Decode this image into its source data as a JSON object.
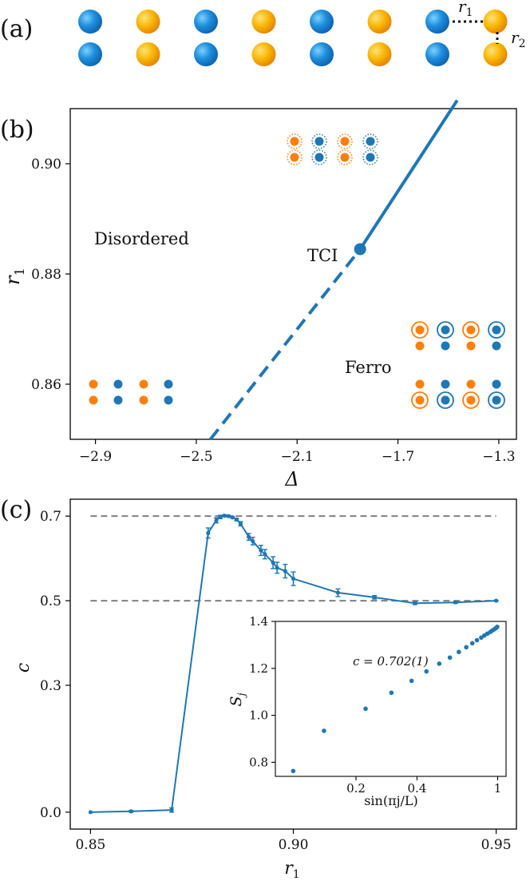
{
  "panel_labels": {
    "a": "(a)",
    "b": "(b)",
    "c": "(c)"
  },
  "colors": {
    "blue": "#1f77b4",
    "orange": "#ff7f0e",
    "gold": "#f5a800",
    "sphere_blue": "#1e90dd",
    "grid_dash": "#808080",
    "axis": "#000000"
  },
  "lattice": {
    "columns": [
      "blue",
      "orange",
      "blue",
      "orange",
      "blue",
      "orange",
      "blue",
      "orange"
    ],
    "rows": 2,
    "labels": {
      "r1": "r",
      "r1_sub": "1",
      "r2": "r",
      "r2_sub": "2"
    }
  },
  "chart_data": [
    {
      "id": "phase-diagram",
      "type": "line",
      "xlabel": "Δ",
      "ylabel": "r",
      "ylabel_sub": "1",
      "xlim": [
        -3.0,
        -1.23
      ],
      "ylim": [
        0.85,
        0.91
      ],
      "xticks": [
        -2.9,
        -2.5,
        -2.1,
        -1.7,
        -1.3
      ],
      "xtick_labels": [
        "−2.9",
        "−2.5",
        "−2.1",
        "−1.7",
        "−1.3"
      ],
      "yticks": [
        0.86,
        0.88,
        0.9
      ],
      "ytick_labels": [
        "0.86",
        "0.88",
        "0.90"
      ],
      "series": [
        {
          "name": "first-order transition (dashed)",
          "style": "dashed",
          "x": [
            -2.444,
            -1.85
          ],
          "y": [
            0.85,
            0.8845
          ]
        },
        {
          "name": "second-order transition (solid)",
          "style": "solid",
          "x": [
            -1.85,
            -1.465
          ],
          "y": [
            0.8845,
            0.9115
          ]
        }
      ],
      "tci_point": {
        "x": -1.85,
        "y": 0.8845,
        "label": "TCI"
      },
      "regions": {
        "disordered": "Disordered",
        "ferro": "Ferro"
      },
      "icons": [
        {
          "kind": "dotted-pairs",
          "anchor_x": -2.0,
          "anchor_y": 0.9025
        },
        {
          "kind": "plain-dots",
          "anchor_x": -2.75,
          "anchor_y": 0.8585
        },
        {
          "kind": "ring-top",
          "anchor_x": -1.45,
          "anchor_y": 0.8693
        },
        {
          "kind": "ring-bottom",
          "anchor_x": -1.45,
          "anchor_y": 0.8585
        }
      ]
    },
    {
      "id": "central-charge",
      "type": "line",
      "xlabel": "r",
      "xlabel_sub": "1",
      "ylabel": "c",
      "xlim": [
        0.845,
        0.955
      ],
      "ylim": [
        -0.04,
        0.74
      ],
      "xticks": [
        0.85,
        0.9,
        0.95
      ],
      "xtick_labels": [
        "0.85",
        "0.90",
        "0.95"
      ],
      "yticks": [
        0.0,
        0.3,
        0.5,
        0.7
      ],
      "ytick_labels": [
        "0.0",
        "0.3",
        "0.5",
        "0.7"
      ],
      "reference_lines": [
        0.7,
        0.5
      ],
      "x": [
        0.85,
        0.86,
        0.87,
        0.879,
        0.881,
        0.882,
        0.883,
        0.884,
        0.885,
        0.886,
        0.887,
        0.889,
        0.89,
        0.892,
        0.893,
        0.895,
        0.896,
        0.898,
        0.9,
        0.911,
        0.92,
        0.93,
        0.94,
        0.95
      ],
      "values": [
        0.0,
        0.002,
        0.005,
        0.66,
        0.69,
        0.698,
        0.701,
        0.7,
        0.697,
        0.692,
        0.682,
        0.651,
        0.641,
        0.619,
        0.61,
        0.59,
        0.578,
        0.57,
        0.552,
        0.519,
        0.508,
        0.494,
        0.496,
        0.5
      ],
      "errors": [
        0.0,
        0.002,
        0.005,
        0.012,
        0.006,
        0.004,
        0.002,
        0.002,
        0.002,
        0.003,
        0.005,
        0.008,
        0.009,
        0.012,
        0.011,
        0.014,
        0.013,
        0.016,
        0.016,
        0.009,
        0.004,
        0.003,
        0.002,
        0.001
      ],
      "inset": {
        "type": "scatter",
        "xscale": "log",
        "xlabel": "sin(πj/L)",
        "ylabel": "S",
        "ylabel_sub": "j",
        "annotation": "c = 0.702(1)",
        "xlim": [
          0.08,
          1.1
        ],
        "ylim": [
          0.74,
          1.4
        ],
        "xticks": [
          0.2,
          0.4,
          1.0
        ],
        "xtick_labels": [
          "0.2",
          "0.4",
          "1"
        ],
        "yticks": [
          0.8,
          1.0,
          1.2,
          1.4
        ],
        "ytick_labels": [
          "0.8",
          "1.0",
          "1.2",
          "1.4"
        ],
        "x": [
          0.098,
          0.139,
          0.223,
          0.299,
          0.376,
          0.445,
          0.515,
          0.581,
          0.643,
          0.7,
          0.75,
          0.79,
          0.83,
          0.86,
          0.89,
          0.92,
          0.94,
          0.96,
          0.975,
          0.985,
          0.995
        ],
        "values": [
          0.763,
          0.934,
          1.028,
          1.096,
          1.147,
          1.187,
          1.22,
          1.246,
          1.27,
          1.29,
          1.307,
          1.32,
          1.331,
          1.34,
          1.348,
          1.355,
          1.361,
          1.366,
          1.37,
          1.373,
          1.377
        ]
      }
    }
  ]
}
